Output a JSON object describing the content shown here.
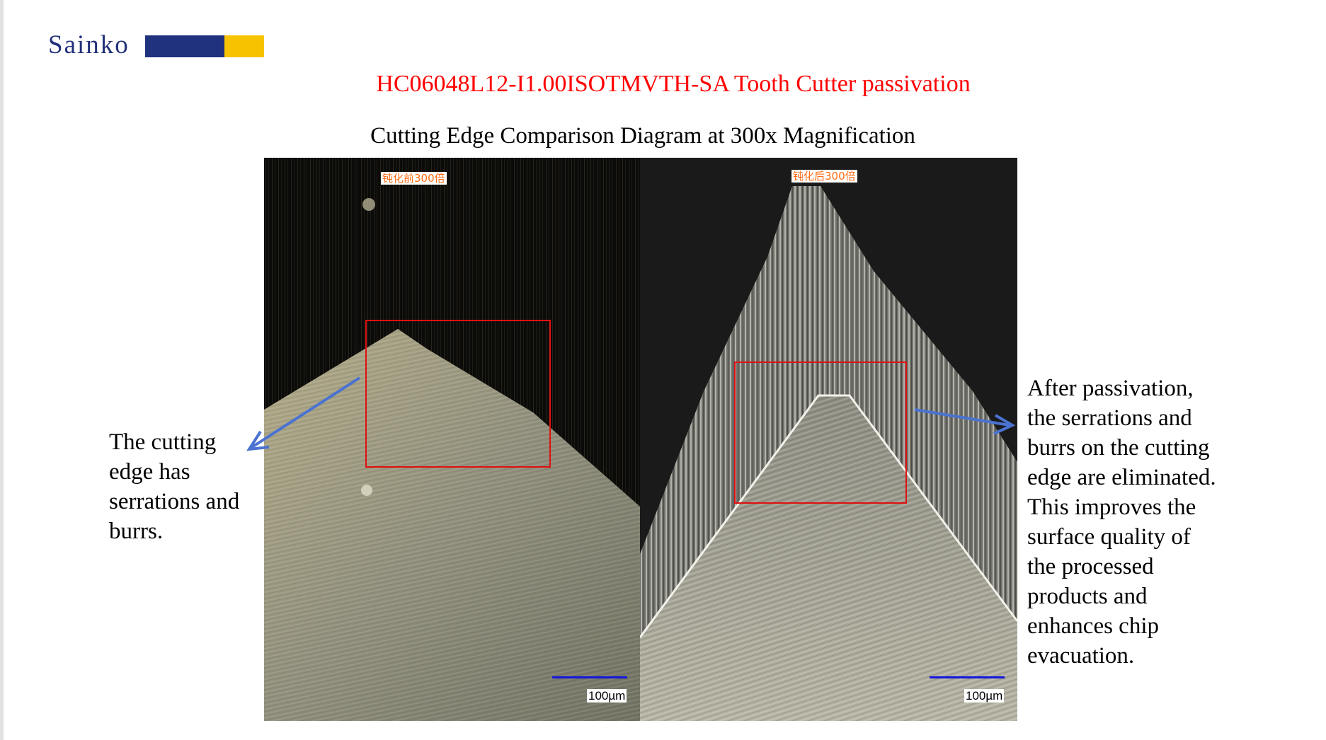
{
  "logo": {
    "text": "Sainko",
    "colors": {
      "navy": "#20317d",
      "yellow": "#f7c300"
    }
  },
  "title": "HC06048L12-I1.00ISOTMVTH-SA Tooth Cutter passivation",
  "subtitle": "Cutting Edge Comparison Diagram at 300x Magnification",
  "photos": {
    "before": {
      "label": "钝化前300倍",
      "scale": "100µm"
    },
    "after": {
      "label": "钝化后300倍",
      "scale": "100µm"
    }
  },
  "left_note": [
    "The cutting",
    "edge has",
    "serrations and",
    "burrs."
  ],
  "right_note": [
    "After passivation,",
    "the serrations and",
    "burrs on the cutting",
    "edge are eliminated.",
    "This improves the",
    "surface quality of",
    "the processed",
    "products and",
    "enhances chip",
    "evacuation."
  ],
  "colors": {
    "title": "#ff0000",
    "highlight_box": "#e01010",
    "arrow": "#4a72d0",
    "scale_bar": "#1515e0"
  }
}
